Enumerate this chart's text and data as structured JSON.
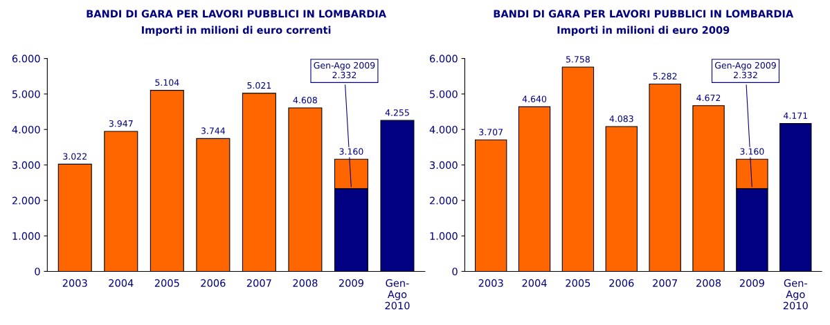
{
  "chart_data": [
    {
      "type": "bar",
      "title": "BANDI DI GARA PER LAVORI PUBBLICI IN LOMBARDIA",
      "subtitle": "Importi in milioni di euro correnti",
      "categories": [
        "2003",
        "2004",
        "2005",
        "2006",
        "2007",
        "2008",
        "2009",
        "Gen-\nAgo\n2010"
      ],
      "stacked": true,
      "series": [
        {
          "color": "#000080",
          "values": [
            null,
            null,
            null,
            null,
            null,
            null,
            2332,
            4255
          ]
        },
        {
          "color": "#ff6600",
          "values": [
            3022,
            3947,
            5104,
            3744,
            5021,
            4608,
            828,
            null
          ]
        }
      ],
      "totals": [
        "3.022",
        "3.947",
        "5.104",
        "3.744",
        "5.021",
        "4.608",
        "3.160",
        "4.255"
      ],
      "annotations": [
        {
          "text": "Gen-Ago 2009\n2.332",
          "x": "2009",
          "y": 2332
        }
      ],
      "ylim": [
        0,
        6000
      ],
      "yticks": [
        0,
        {
          "value": 1000,
          "label": "1.000"
        },
        {
          "value": 2000,
          "label": "2.000"
        },
        {
          "value": 3000,
          "label": "3.000"
        },
        {
          "value": 4000,
          "label": "4.000"
        },
        {
          "value": 5000,
          "label": "5.000"
        },
        {
          "value": 6000,
          "label": "6.000"
        }
      ],
      "grid": false,
      "legend": false
    },
    {
      "type": "bar",
      "title": "BANDI DI GARA PER LAVORI PUBBLICI IN LOMBARDIA",
      "subtitle": "Importi in milioni di euro 2009",
      "categories": [
        "2003",
        "2004",
        "2005",
        "2006",
        "2007",
        "2008",
        "2009",
        "Gen-\nAgo\n2010"
      ],
      "stacked": true,
      "series": [
        {
          "color": "#000080",
          "values": [
            null,
            null,
            null,
            null,
            null,
            null,
            2332,
            4171
          ]
        },
        {
          "color": "#ff6600",
          "values": [
            3707,
            4640,
            5758,
            4083,
            5282,
            4672,
            828,
            null
          ]
        }
      ],
      "totals": [
        "3.707",
        "4.640",
        "5.758",
        "4.083",
        "5.282",
        "4.672",
        "3.160",
        "4.171"
      ],
      "annotations": [
        {
          "text": "Gen-Ago 2009\n2.332",
          "x": "2009",
          "y": 2332
        }
      ],
      "ylim": [
        0,
        6000
      ],
      "yticks": [
        0,
        {
          "value": 1000,
          "label": "1.000"
        },
        {
          "value": 2000,
          "label": "2.000"
        },
        {
          "value": 3000,
          "label": "3.000"
        },
        {
          "value": 4000,
          "label": "4.000"
        },
        {
          "value": 5000,
          "label": "5.000"
        },
        {
          "value": 6000,
          "label": "6.000"
        }
      ],
      "grid": false,
      "legend": false
    }
  ]
}
